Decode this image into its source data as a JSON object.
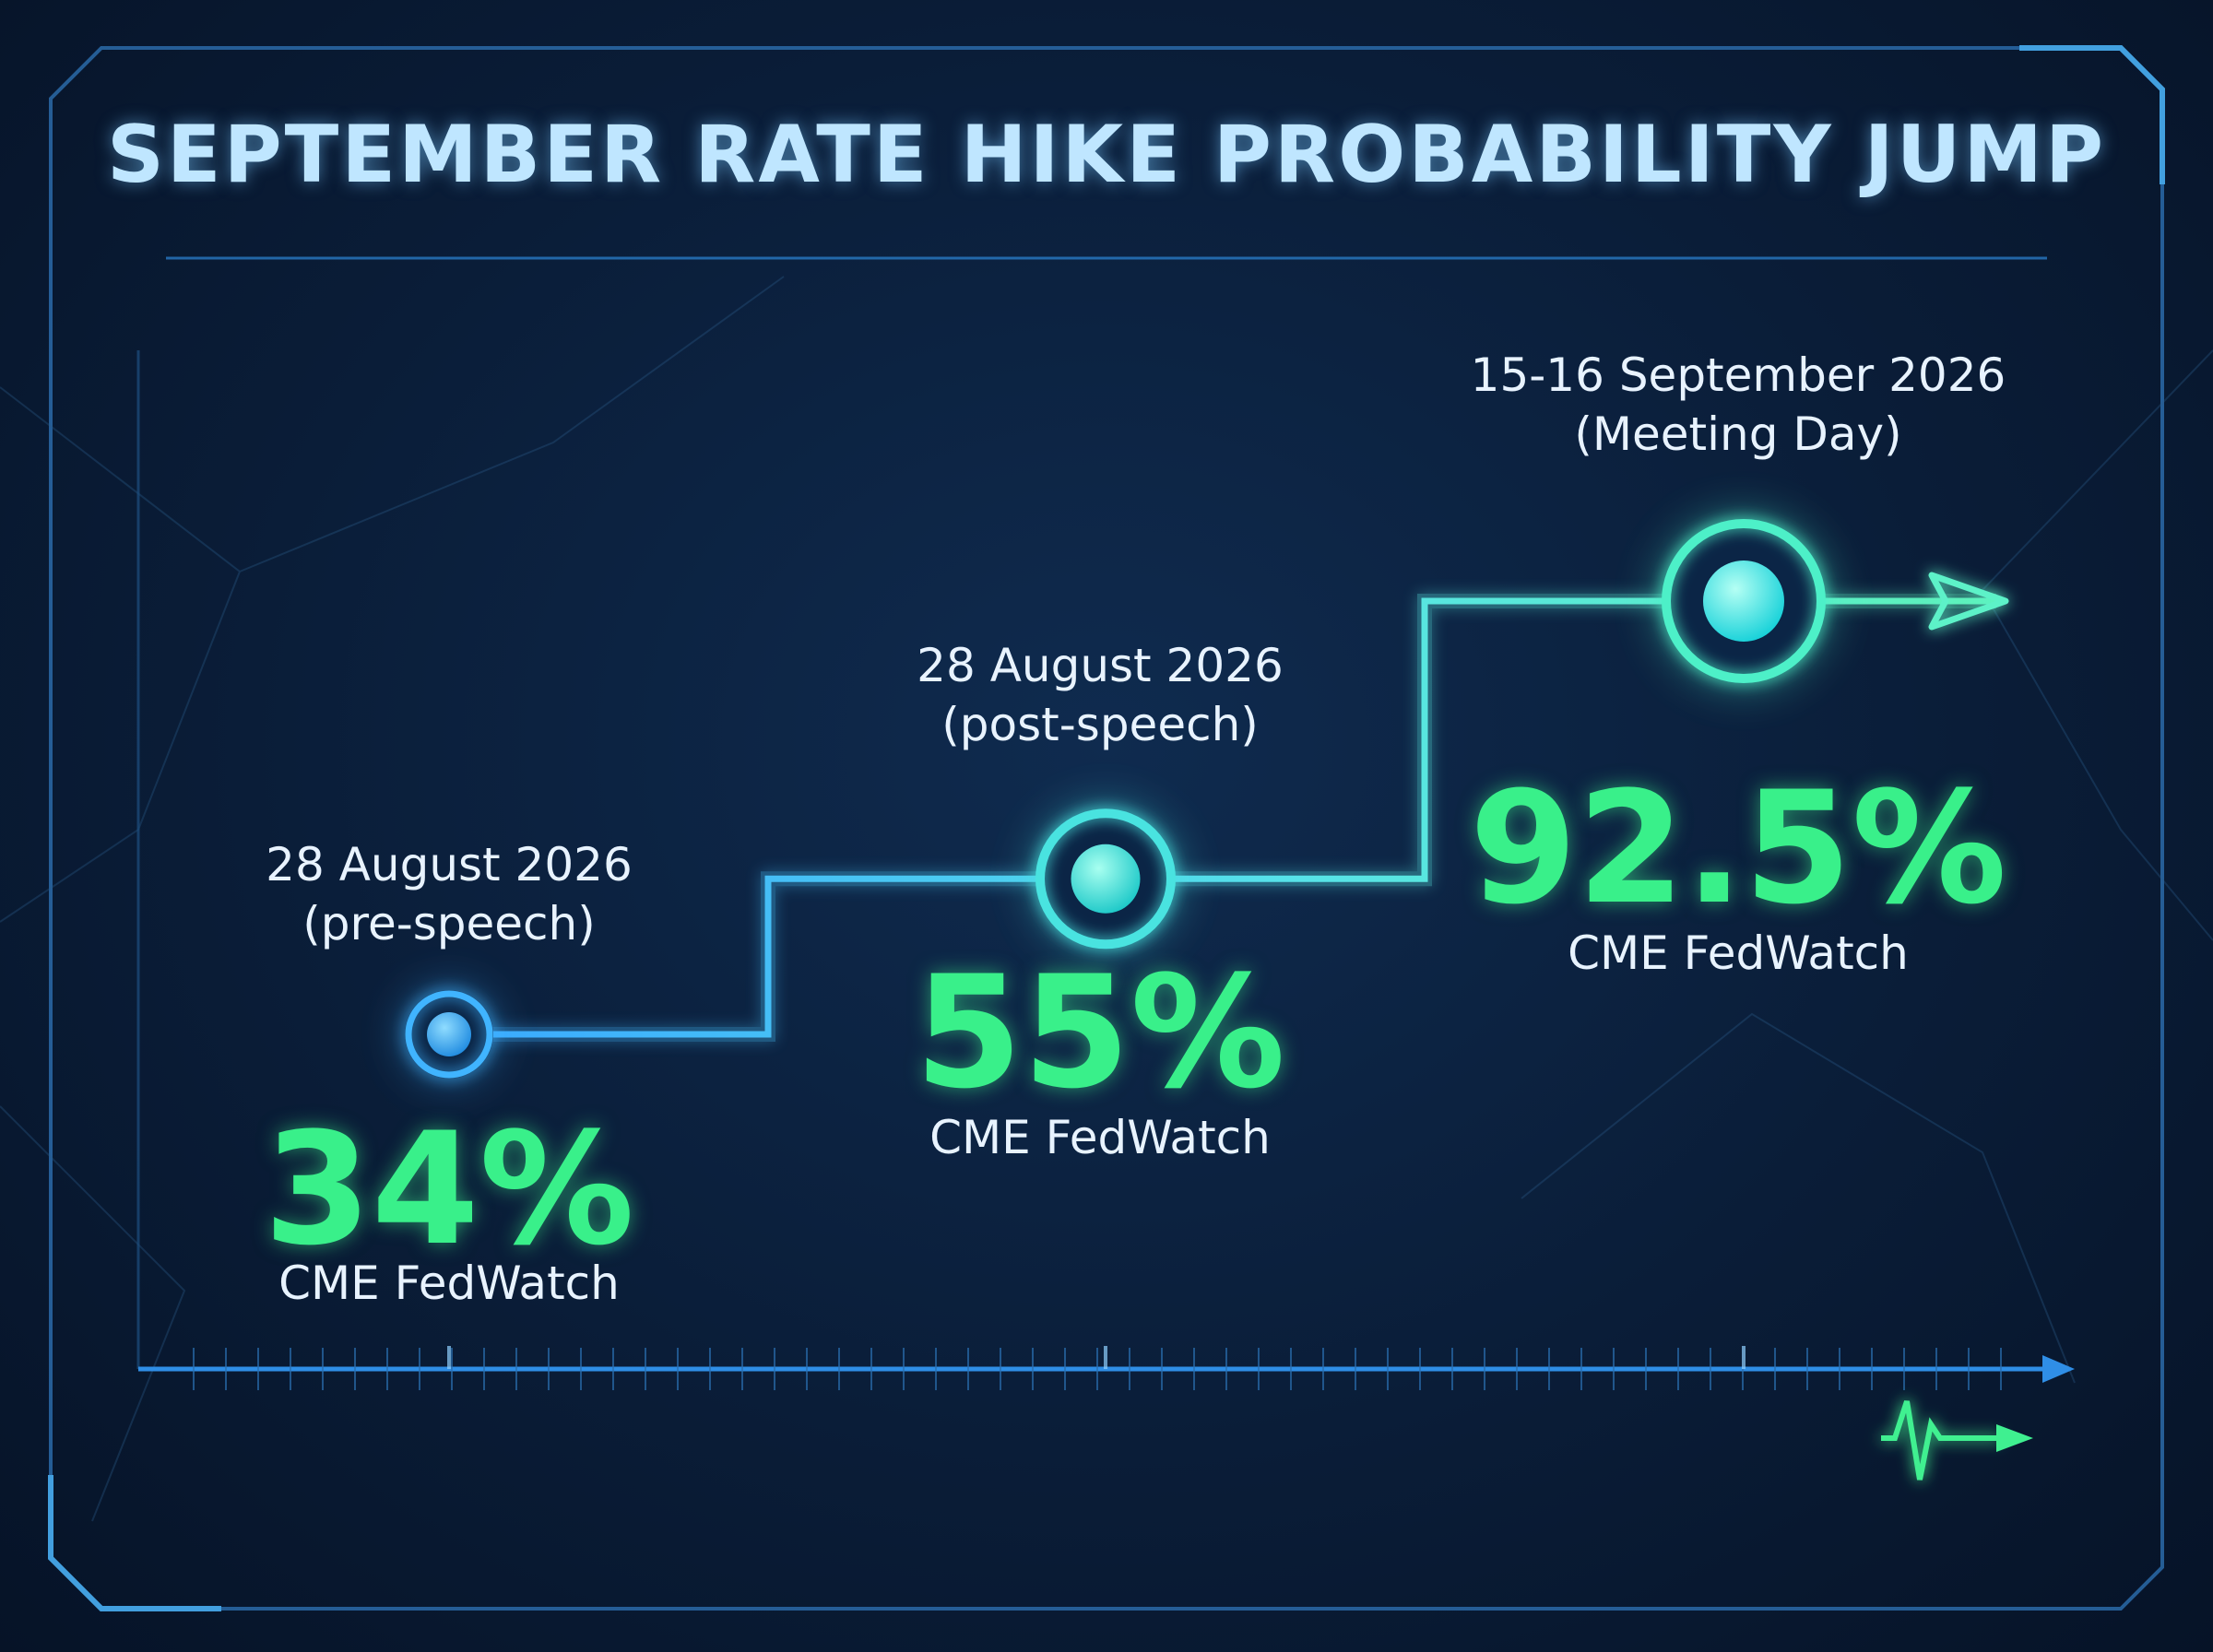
{
  "title": "SEPTEMBER RATE HIKE PROBABILITY JUMP",
  "colors": {
    "accent_green": "#39f08a",
    "accent_blue": "#3fb4ff",
    "title": "#bfe6ff",
    "background": "#0a1d38"
  },
  "chart_data": {
    "type": "line",
    "title": "SEPTEMBER RATE HIKE PROBABILITY JUMP",
    "xlabel": "",
    "ylabel": "",
    "grid": false,
    "points": [
      {
        "date_label": "28 August 2026",
        "note": "(pre-speech)",
        "value": 34,
        "value_label": "34%",
        "source": "CME FedWatch"
      },
      {
        "date_label": "28 August 2026",
        "note": "(post-speech)",
        "value": 55,
        "value_label": "55%",
        "source": "CME FedWatch"
      },
      {
        "date_label": "15-16 September 2026",
        "note": "(Meeting Day)",
        "value": 92.5,
        "value_label": "92.5%",
        "source": "CME FedWatch"
      }
    ]
  }
}
